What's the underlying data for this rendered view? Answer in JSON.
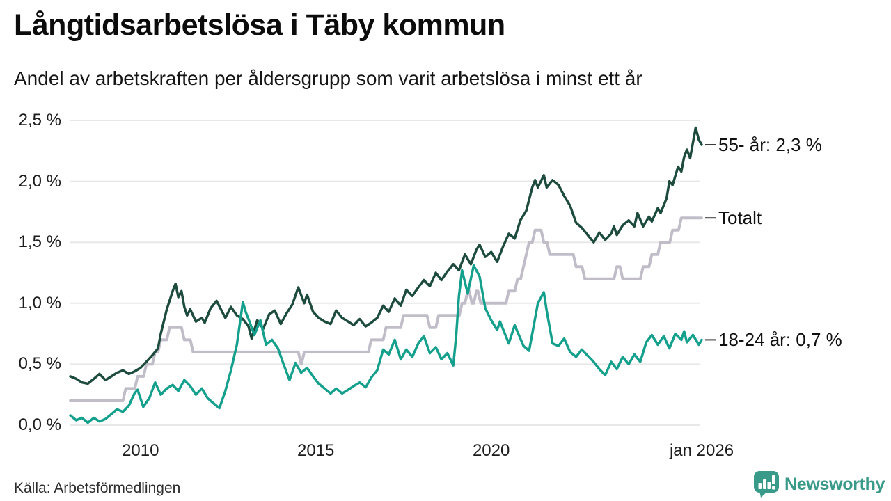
{
  "source": "Källa: Arbetsförmedlingen",
  "logo": {
    "text": "Newsworthy",
    "icon": "bar-chart-speech-bubble",
    "color": "#3a9a8a"
  },
  "chart_data": {
    "type": "line",
    "title": "Långtidsarbetslösa i Täby kommun",
    "subtitle": "Andel av arbetskraften per åldersgrupp som varit arbetslösa i minst ett år",
    "grid": "horizontal",
    "legend_position": "right-end-labels",
    "x_axis": {
      "range": [
        2008.0,
        2026.0
      ],
      "ticks": [
        {
          "label": "2010",
          "x": 2010
        },
        {
          "label": "2015",
          "x": 2015
        },
        {
          "label": "2020",
          "x": 2020
        },
        {
          "label": "jan 2026",
          "x": 2026.0
        }
      ]
    },
    "y_axis": {
      "range": [
        0,
        2.5
      ],
      "unit": "%",
      "ticks": [
        {
          "label": "0,0 %",
          "value": 0
        },
        {
          "label": "0,5 %",
          "value": 0.5
        },
        {
          "label": "1,0 %",
          "value": 1.0
        },
        {
          "label": "1,5 %",
          "value": 1.5
        },
        {
          "label": "2,0 %",
          "value": 2.0
        },
        {
          "label": "2,5 %",
          "value": 2.5
        }
      ]
    },
    "series": [
      {
        "name": "55- år",
        "end_label": "55- år: 2,3 %",
        "final_value": "2,3 %",
        "color": "#1d4b3e",
        "line_style": "linear",
        "draw_order": 1,
        "points": [
          [
            2008.0,
            0.4
          ],
          [
            2008.17,
            0.38
          ],
          [
            2008.33,
            0.35
          ],
          [
            2008.5,
            0.34
          ],
          [
            2008.67,
            0.38
          ],
          [
            2008.83,
            0.42
          ],
          [
            2009.0,
            0.37
          ],
          [
            2009.17,
            0.4
          ],
          [
            2009.33,
            0.43
          ],
          [
            2009.5,
            0.45
          ],
          [
            2009.67,
            0.42
          ],
          [
            2009.83,
            0.44
          ],
          [
            2010.0,
            0.47
          ],
          [
            2010.17,
            0.52
          ],
          [
            2010.33,
            0.57
          ],
          [
            2010.5,
            0.63
          ],
          [
            2010.58,
            0.75
          ],
          [
            2010.75,
            0.95
          ],
          [
            2010.92,
            1.1
          ],
          [
            2011.0,
            1.16
          ],
          [
            2011.08,
            1.05
          ],
          [
            2011.17,
            1.1
          ],
          [
            2011.25,
            0.97
          ],
          [
            2011.33,
            0.9
          ],
          [
            2011.42,
            0.95
          ],
          [
            2011.58,
            0.85
          ],
          [
            2011.75,
            0.88
          ],
          [
            2011.83,
            0.84
          ],
          [
            2012.0,
            0.96
          ],
          [
            2012.17,
            1.02
          ],
          [
            2012.33,
            0.93
          ],
          [
            2012.42,
            0.88
          ],
          [
            2012.58,
            0.97
          ],
          [
            2012.75,
            0.9
          ],
          [
            2012.92,
            0.87
          ],
          [
            2013.08,
            0.81
          ],
          [
            2013.17,
            0.71
          ],
          [
            2013.33,
            0.86
          ],
          [
            2013.5,
            0.79
          ],
          [
            2013.67,
            0.91
          ],
          [
            2013.83,
            0.94
          ],
          [
            2014.0,
            0.83
          ],
          [
            2014.17,
            0.92
          ],
          [
            2014.33,
            0.99
          ],
          [
            2014.5,
            1.13
          ],
          [
            2014.67,
            1.0
          ],
          [
            2014.75,
            1.07
          ],
          [
            2014.92,
            0.93
          ],
          [
            2015.08,
            0.88
          ],
          [
            2015.25,
            0.85
          ],
          [
            2015.42,
            0.83
          ],
          [
            2015.58,
            0.94
          ],
          [
            2015.75,
            0.88
          ],
          [
            2015.92,
            0.85
          ],
          [
            2016.08,
            0.82
          ],
          [
            2016.25,
            0.87
          ],
          [
            2016.42,
            0.81
          ],
          [
            2016.58,
            0.84
          ],
          [
            2016.75,
            0.88
          ],
          [
            2016.92,
            0.98
          ],
          [
            2017.08,
            0.93
          ],
          [
            2017.25,
            1.04
          ],
          [
            2017.42,
            0.98
          ],
          [
            2017.58,
            1.11
          ],
          [
            2017.75,
            1.06
          ],
          [
            2017.92,
            1.13
          ],
          [
            2018.08,
            1.19
          ],
          [
            2018.25,
            1.14
          ],
          [
            2018.42,
            1.25
          ],
          [
            2018.58,
            1.19
          ],
          [
            2018.75,
            1.26
          ],
          [
            2018.92,
            1.32
          ],
          [
            2019.08,
            1.27
          ],
          [
            2019.25,
            1.4
          ],
          [
            2019.42,
            1.32
          ],
          [
            2019.58,
            1.44
          ],
          [
            2019.67,
            1.48
          ],
          [
            2019.83,
            1.38
          ],
          [
            2020.0,
            1.42
          ],
          [
            2020.17,
            1.34
          ],
          [
            2020.33,
            1.46
          ],
          [
            2020.5,
            1.57
          ],
          [
            2020.67,
            1.53
          ],
          [
            2020.83,
            1.68
          ],
          [
            2021.0,
            1.76
          ],
          [
            2021.17,
            1.95
          ],
          [
            2021.25,
            2.01
          ],
          [
            2021.33,
            1.95
          ],
          [
            2021.5,
            2.05
          ],
          [
            2021.58,
            1.95
          ],
          [
            2021.75,
            2.01
          ],
          [
            2021.92,
            1.97
          ],
          [
            2022.08,
            1.88
          ],
          [
            2022.25,
            1.8
          ],
          [
            2022.42,
            1.66
          ],
          [
            2022.58,
            1.62
          ],
          [
            2022.75,
            1.56
          ],
          [
            2022.92,
            1.5
          ],
          [
            2023.08,
            1.58
          ],
          [
            2023.25,
            1.52
          ],
          [
            2023.42,
            1.57
          ],
          [
            2023.5,
            1.63
          ],
          [
            2023.58,
            1.56
          ],
          [
            2023.75,
            1.64
          ],
          [
            2023.92,
            1.68
          ],
          [
            2024.08,
            1.63
          ],
          [
            2024.17,
            1.74
          ],
          [
            2024.33,
            1.63
          ],
          [
            2024.5,
            1.71
          ],
          [
            2024.58,
            1.67
          ],
          [
            2024.75,
            1.78
          ],
          [
            2024.83,
            1.74
          ],
          [
            2025.0,
            1.86
          ],
          [
            2025.08,
            2.0
          ],
          [
            2025.17,
            1.97
          ],
          [
            2025.33,
            2.12
          ],
          [
            2025.42,
            2.08
          ],
          [
            2025.5,
            2.2
          ],
          [
            2025.58,
            2.26
          ],
          [
            2025.67,
            2.19
          ],
          [
            2025.83,
            2.44
          ],
          [
            2025.92,
            2.34
          ],
          [
            2026.0,
            2.3
          ]
        ]
      },
      {
        "name": "Totalt",
        "end_label": "Totalt",
        "final_value": "1,7 %",
        "color": "#c0bdc8",
        "line_style": "step",
        "draw_order": 0,
        "points": [
          [
            2008.0,
            0.2
          ],
          [
            2009.58,
            0.3
          ],
          [
            2009.92,
            0.4
          ],
          [
            2010.17,
            0.5
          ],
          [
            2010.42,
            0.6
          ],
          [
            2010.58,
            0.7
          ],
          [
            2010.83,
            0.8
          ],
          [
            2011.25,
            0.7
          ],
          [
            2011.5,
            0.6
          ],
          [
            2014.58,
            0.5
          ],
          [
            2014.67,
            0.6
          ],
          [
            2016.58,
            0.7
          ],
          [
            2017.0,
            0.8
          ],
          [
            2017.5,
            0.9
          ],
          [
            2018.25,
            0.8
          ],
          [
            2018.5,
            0.9
          ],
          [
            2019.17,
            1.0
          ],
          [
            2019.33,
            1.1
          ],
          [
            2019.45,
            1.0
          ],
          [
            2019.58,
            1.1
          ],
          [
            2019.7,
            1.0
          ],
          [
            2020.5,
            1.1
          ],
          [
            2020.75,
            1.2
          ],
          [
            2020.92,
            1.3
          ],
          [
            2021.0,
            1.4
          ],
          [
            2021.08,
            1.5
          ],
          [
            2021.25,
            1.6
          ],
          [
            2021.5,
            1.5
          ],
          [
            2021.67,
            1.4
          ],
          [
            2022.42,
            1.3
          ],
          [
            2022.67,
            1.2
          ],
          [
            2023.58,
            1.3
          ],
          [
            2023.75,
            1.2
          ],
          [
            2024.33,
            1.3
          ],
          [
            2024.58,
            1.4
          ],
          [
            2024.83,
            1.5
          ],
          [
            2025.17,
            1.6
          ],
          [
            2025.42,
            1.7
          ],
          [
            2026.0,
            1.7
          ]
        ]
      },
      {
        "name": "18-24 år",
        "end_label": "18-24 år: 0,7 %",
        "final_value": "0,7 %",
        "color": "#14a08c",
        "line_style": "linear",
        "draw_order": 2,
        "points": [
          [
            2008.0,
            0.08
          ],
          [
            2008.17,
            0.04
          ],
          [
            2008.33,
            0.06
          ],
          [
            2008.5,
            0.02
          ],
          [
            2008.67,
            0.06
          ],
          [
            2008.83,
            0.03
          ],
          [
            2009.0,
            0.05
          ],
          [
            2009.17,
            0.09
          ],
          [
            2009.33,
            0.13
          ],
          [
            2009.5,
            0.11
          ],
          [
            2009.67,
            0.16
          ],
          [
            2009.83,
            0.26
          ],
          [
            2009.92,
            0.29
          ],
          [
            2010.08,
            0.15
          ],
          [
            2010.25,
            0.22
          ],
          [
            2010.42,
            0.35
          ],
          [
            2010.58,
            0.25
          ],
          [
            2010.75,
            0.3
          ],
          [
            2010.92,
            0.33
          ],
          [
            2011.08,
            0.28
          ],
          [
            2011.25,
            0.37
          ],
          [
            2011.42,
            0.32
          ],
          [
            2011.58,
            0.25
          ],
          [
            2011.75,
            0.3
          ],
          [
            2011.92,
            0.22
          ],
          [
            2012.08,
            0.18
          ],
          [
            2012.25,
            0.14
          ],
          [
            2012.42,
            0.28
          ],
          [
            2012.58,
            0.45
          ],
          [
            2012.75,
            0.66
          ],
          [
            2012.92,
            1.01
          ],
          [
            2013.0,
            0.93
          ],
          [
            2013.08,
            0.87
          ],
          [
            2013.25,
            0.74
          ],
          [
            2013.42,
            0.86
          ],
          [
            2013.58,
            0.66
          ],
          [
            2013.75,
            0.7
          ],
          [
            2013.92,
            0.63
          ],
          [
            2014.08,
            0.5
          ],
          [
            2014.25,
            0.37
          ],
          [
            2014.42,
            0.51
          ],
          [
            2014.58,
            0.43
          ],
          [
            2014.75,
            0.47
          ],
          [
            2014.92,
            0.4
          ],
          [
            2015.08,
            0.34
          ],
          [
            2015.25,
            0.3
          ],
          [
            2015.42,
            0.26
          ],
          [
            2015.58,
            0.3
          ],
          [
            2015.75,
            0.26
          ],
          [
            2015.92,
            0.29
          ],
          [
            2016.08,
            0.32
          ],
          [
            2016.25,
            0.35
          ],
          [
            2016.42,
            0.31
          ],
          [
            2016.58,
            0.39
          ],
          [
            2016.75,
            0.45
          ],
          [
            2016.92,
            0.62
          ],
          [
            2017.08,
            0.58
          ],
          [
            2017.25,
            0.7
          ],
          [
            2017.42,
            0.54
          ],
          [
            2017.58,
            0.62
          ],
          [
            2017.75,
            0.56
          ],
          [
            2017.92,
            0.67
          ],
          [
            2018.08,
            0.73
          ],
          [
            2018.25,
            0.59
          ],
          [
            2018.42,
            0.64
          ],
          [
            2018.58,
            0.54
          ],
          [
            2018.75,
            0.59
          ],
          [
            2018.92,
            0.49
          ],
          [
            2019.0,
            0.73
          ],
          [
            2019.08,
            1.06
          ],
          [
            2019.17,
            1.27
          ],
          [
            2019.33,
            1.08
          ],
          [
            2019.5,
            1.31
          ],
          [
            2019.67,
            1.22
          ],
          [
            2019.83,
            0.96
          ],
          [
            2020.0,
            0.86
          ],
          [
            2020.17,
            0.78
          ],
          [
            2020.25,
            0.85
          ],
          [
            2020.5,
            0.67
          ],
          [
            2020.67,
            0.82
          ],
          [
            2020.92,
            0.65
          ],
          [
            2021.08,
            0.61
          ],
          [
            2021.33,
            1.0
          ],
          [
            2021.5,
            1.09
          ],
          [
            2021.58,
            0.94
          ],
          [
            2021.75,
            0.67
          ],
          [
            2021.92,
            0.65
          ],
          [
            2022.08,
            0.71
          ],
          [
            2022.25,
            0.6
          ],
          [
            2022.42,
            0.56
          ],
          [
            2022.58,
            0.62
          ],
          [
            2022.75,
            0.57
          ],
          [
            2022.92,
            0.52
          ],
          [
            2023.08,
            0.46
          ],
          [
            2023.25,
            0.41
          ],
          [
            2023.42,
            0.52
          ],
          [
            2023.58,
            0.46
          ],
          [
            2023.75,
            0.56
          ],
          [
            2023.92,
            0.5
          ],
          [
            2024.08,
            0.58
          ],
          [
            2024.25,
            0.52
          ],
          [
            2024.42,
            0.68
          ],
          [
            2024.58,
            0.74
          ],
          [
            2024.75,
            0.66
          ],
          [
            2024.92,
            0.73
          ],
          [
            2025.08,
            0.63
          ],
          [
            2025.25,
            0.75
          ],
          [
            2025.42,
            0.7
          ],
          [
            2025.5,
            0.77
          ],
          [
            2025.58,
            0.68
          ],
          [
            2025.75,
            0.74
          ],
          [
            2025.92,
            0.66
          ],
          [
            2026.0,
            0.7
          ]
        ]
      }
    ]
  }
}
